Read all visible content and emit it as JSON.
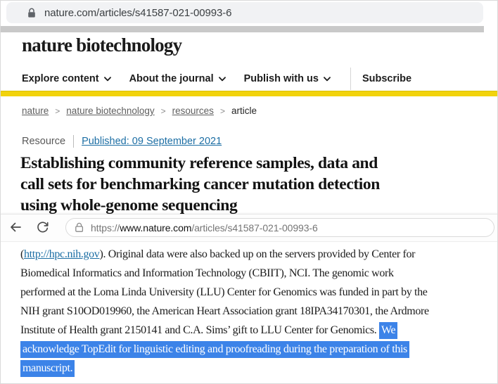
{
  "browser_top": {
    "url": "nature.com/articles/s41587-021-00993-6"
  },
  "site_header": {
    "logo": "nature biotechnology",
    "nav_items": [
      "Explore content",
      "About the journal",
      "Publish with us"
    ],
    "subscribe_label": "Subscribe"
  },
  "breadcrumb": {
    "separator": ">",
    "items": [
      {
        "label": "nature",
        "link": true
      },
      {
        "label": "nature biotechnology",
        "link": true
      },
      {
        "label": "resources",
        "link": true
      },
      {
        "label": "article",
        "link": false
      }
    ]
  },
  "article": {
    "type_label": "Resource",
    "published_label": "Published: 09 September 2021",
    "title_lines": [
      "Establishing community reference samples, data and",
      "call sets for benchmarking cancer mutation detection",
      "using whole-genome sequencing"
    ]
  },
  "overlay_browser": {
    "url_scheme": "https://",
    "url_domain": "www.nature.com",
    "url_path": "/articles/s41587-021-00993-6"
  },
  "acknowledgements": {
    "lines": [
      [
        {
          "text": "("
        },
        {
          "text": "http://hpc.nih.gov",
          "style": "link"
        },
        {
          "text": "). Original data were also backed up on the servers provided by Center for"
        }
      ],
      [
        {
          "text": "Biomedical Informatics and Information Technology (CBIIT), NCI. The genomic work"
        }
      ],
      [
        {
          "text": "performed at the Loma Linda University (LLU) Center for Genomics was funded in part by the"
        }
      ],
      [
        {
          "text": "NIH grant S10OD019960, the American Heart Association grant 18IPA34170301, the Ardmore"
        }
      ],
      [
        {
          "text": "Institute of Health grant 2150141 and C.A. Sims’ gift to LLU Center for Genomics. "
        },
        {
          "text": "We",
          "style": "highlight"
        }
      ],
      [
        {
          "text": "acknowledge TopEdit for linguistic editing and proofreading during the preparation of this",
          "style": "highlight"
        }
      ],
      [
        {
          "text": "manuscript.",
          "style": "highlight"
        }
      ]
    ]
  },
  "colors": {
    "brand_yellow": "#f2d30b",
    "selection_highlight": "#3c83e8",
    "link_blue": "#1c6ea4"
  }
}
